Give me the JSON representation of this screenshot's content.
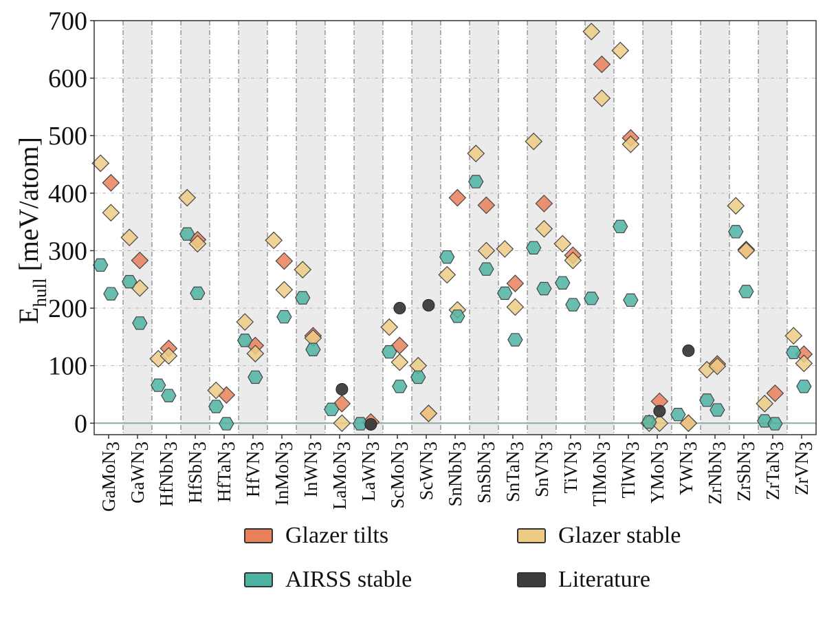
{
  "chart_data": {
    "type": "scatter",
    "ylabel_main": "E",
    "ylabel_sub": "hull",
    "ylabel_units": " [meV/atom]",
    "ylim": [
      -20,
      700
    ],
    "yticks": [
      0,
      100,
      200,
      300,
      400,
      500,
      600,
      700
    ],
    "grid": true,
    "reference_line": 0,
    "categories": [
      "GaMoN3",
      "GaWN3",
      "HfNbN3",
      "HfSbN3",
      "HfTaN3",
      "HfVN3",
      "InMoN3",
      "InWN3",
      "LaMoN3",
      "LaWN3",
      "ScMoN3",
      "ScWN3",
      "SnNbN3",
      "SnSbN3",
      "SnTaN3",
      "SnVN3",
      "TiVN3",
      "TlMoN3",
      "TlWN3",
      "YMoN3",
      "YWN3",
      "ZrNbN3",
      "ZrSbN3",
      "ZrTaN3",
      "ZrVN3"
    ],
    "category_labels": [
      {
        "base": "GaMoN",
        "sub": "3"
      },
      {
        "base": "GaWN",
        "sub": "3"
      },
      {
        "base": "HfNbN",
        "sub": "3"
      },
      {
        "base": "HfSbN",
        "sub": "3"
      },
      {
        "base": "HfTaN",
        "sub": "3"
      },
      {
        "base": "HfVN",
        "sub": "3"
      },
      {
        "base": "InMoN",
        "sub": "3"
      },
      {
        "base": "InWN",
        "sub": "3"
      },
      {
        "base": "LaMoN",
        "sub": "3"
      },
      {
        "base": "LaWN",
        "sub": "3"
      },
      {
        "base": "ScMoN",
        "sub": "3"
      },
      {
        "base": "ScWN",
        "sub": "3"
      },
      {
        "base": "SnNbN",
        "sub": "3"
      },
      {
        "base": "SnSbN",
        "sub": "3"
      },
      {
        "base": "SnTaN",
        "sub": "3"
      },
      {
        "base": "SnVN",
        "sub": "3"
      },
      {
        "base": "TiVN",
        "sub": "3"
      },
      {
        "base": "TlMoN",
        "sub": "3"
      },
      {
        "base": "TlWN",
        "sub": "3"
      },
      {
        "base": "YMoN",
        "sub": "3"
      },
      {
        "base": "YWN",
        "sub": "3"
      },
      {
        "base": "ZrNbN",
        "sub": "3"
      },
      {
        "base": "ZrSbN",
        "sub": "3"
      },
      {
        "base": "ZrTaN",
        "sub": "3"
      },
      {
        "base": "ZrVN",
        "sub": "3"
      }
    ],
    "series": [
      {
        "name": "Glazer tilts",
        "marker": "diamond",
        "color": "#E8805A",
        "points": [
          {
            "c": 0,
            "slot": 1,
            "y": 418
          },
          {
            "c": 1,
            "slot": 1,
            "y": 283
          },
          {
            "c": 2,
            "slot": 1,
            "y": 130
          },
          {
            "c": 3,
            "slot": 1,
            "y": 319
          },
          {
            "c": 4,
            "slot": 1,
            "y": 49
          },
          {
            "c": 5,
            "slot": 1,
            "y": 135
          },
          {
            "c": 6,
            "slot": 1,
            "y": 282
          },
          {
            "c": 7,
            "slot": 1,
            "y": 152
          },
          {
            "c": 8,
            "slot": 1,
            "y": 34
          },
          {
            "c": 9,
            "slot": 1,
            "y": 2
          },
          {
            "c": 10,
            "slot": 1,
            "y": 135
          },
          {
            "c": 11,
            "slot": 1,
            "y": 17
          },
          {
            "c": 12,
            "slot": 1,
            "y": 392
          },
          {
            "c": 13,
            "slot": 1,
            "y": 379
          },
          {
            "c": 14,
            "slot": 1,
            "y": 243
          },
          {
            "c": 15,
            "slot": 1,
            "y": 382
          },
          {
            "c": 16,
            "slot": 1,
            "y": 292
          },
          {
            "c": 17,
            "slot": 1,
            "y": 624
          },
          {
            "c": 18,
            "slot": 1,
            "y": 496
          },
          {
            "c": 19,
            "slot": 1,
            "y": 38
          },
          {
            "c": 20,
            "slot": 1,
            "y": 0
          },
          {
            "c": 21,
            "slot": 1,
            "y": 103
          },
          {
            "c": 22,
            "slot": 1,
            "y": 302
          },
          {
            "c": 23,
            "slot": 1,
            "y": 52
          },
          {
            "c": 24,
            "slot": 1,
            "y": 120
          }
        ]
      },
      {
        "name": "Glazer stable",
        "marker": "diamond",
        "color": "#EDCB85",
        "points": [
          {
            "c": 0,
            "slot": 0,
            "y": 452
          },
          {
            "c": 0,
            "slot": 1,
            "y": 366
          },
          {
            "c": 1,
            "slot": 0,
            "y": 323
          },
          {
            "c": 1,
            "slot": 1,
            "y": 235
          },
          {
            "c": 2,
            "slot": 0,
            "y": 112
          },
          {
            "c": 2,
            "slot": 1,
            "y": 117
          },
          {
            "c": 3,
            "slot": 0,
            "y": 392
          },
          {
            "c": 3,
            "slot": 1,
            "y": 312
          },
          {
            "c": 4,
            "slot": 0,
            "y": 57
          },
          {
            "c": 5,
            "slot": 0,
            "y": 176
          },
          {
            "c": 5,
            "slot": 1,
            "y": 121
          },
          {
            "c": 6,
            "slot": 0,
            "y": 318
          },
          {
            "c": 6,
            "slot": 1,
            "y": 232
          },
          {
            "c": 7,
            "slot": 0,
            "y": 267
          },
          {
            "c": 7,
            "slot": 1,
            "y": 148
          },
          {
            "c": 8,
            "slot": 1,
            "y": 0
          },
          {
            "c": 10,
            "slot": 0,
            "y": 167
          },
          {
            "c": 10,
            "slot": 1,
            "y": 106
          },
          {
            "c": 11,
            "slot": 0,
            "y": 100
          },
          {
            "c": 11,
            "slot": 1,
            "y": 17
          },
          {
            "c": 12,
            "slot": 0,
            "y": 258
          },
          {
            "c": 12,
            "slot": 1,
            "y": 197
          },
          {
            "c": 13,
            "slot": 0,
            "y": 469
          },
          {
            "c": 13,
            "slot": 1,
            "y": 300
          },
          {
            "c": 14,
            "slot": 0,
            "y": 303
          },
          {
            "c": 14,
            "slot": 1,
            "y": 202
          },
          {
            "c": 15,
            "slot": 0,
            "y": 490
          },
          {
            "c": 15,
            "slot": 1,
            "y": 338
          },
          {
            "c": 16,
            "slot": 0,
            "y": 312
          },
          {
            "c": 16,
            "slot": 1,
            "y": 283
          },
          {
            "c": 17,
            "slot": 0,
            "y": 681
          },
          {
            "c": 17,
            "slot": 1,
            "y": 565
          },
          {
            "c": 18,
            "slot": 0,
            "y": 648
          },
          {
            "c": 18,
            "slot": 1,
            "y": 485
          },
          {
            "c": 19,
            "slot": 0,
            "y": 0
          },
          {
            "c": 19,
            "slot": 1,
            "y": 0
          },
          {
            "c": 20,
            "slot": 1,
            "y": 0
          },
          {
            "c": 21,
            "slot": 0,
            "y": 93
          },
          {
            "c": 21,
            "slot": 1,
            "y": 99
          },
          {
            "c": 22,
            "slot": 0,
            "y": 378
          },
          {
            "c": 22,
            "slot": 1,
            "y": 300
          },
          {
            "c": 23,
            "slot": 0,
            "y": 34
          },
          {
            "c": 24,
            "slot": 0,
            "y": 152
          },
          {
            "c": 24,
            "slot": 1,
            "y": 104
          }
        ]
      },
      {
        "name": "AIRSS stable",
        "marker": "hexagon",
        "color": "#4FB3A4",
        "points": [
          {
            "c": 0,
            "slot": 0,
            "y": 275
          },
          {
            "c": 0,
            "slot": 1,
            "y": 225
          },
          {
            "c": 1,
            "slot": 0,
            "y": 246
          },
          {
            "c": 1,
            "slot": 1,
            "y": 174
          },
          {
            "c": 2,
            "slot": 0,
            "y": 66
          },
          {
            "c": 2,
            "slot": 1,
            "y": 48
          },
          {
            "c": 3,
            "slot": 0,
            "y": 329
          },
          {
            "c": 3,
            "slot": 1,
            "y": 226
          },
          {
            "c": 4,
            "slot": 0,
            "y": 29
          },
          {
            "c": 4,
            "slot": 1,
            "y": -1
          },
          {
            "c": 5,
            "slot": 0,
            "y": 144
          },
          {
            "c": 5,
            "slot": 1,
            "y": 80
          },
          {
            "c": 6,
            "slot": 1,
            "y": 185
          },
          {
            "c": 7,
            "slot": 0,
            "y": 218
          },
          {
            "c": 7,
            "slot": 1,
            "y": 128
          },
          {
            "c": 8,
            "slot": 0,
            "y": 24
          },
          {
            "c": 9,
            "slot": 0,
            "y": -1
          },
          {
            "c": 10,
            "slot": 0,
            "y": 124
          },
          {
            "c": 10,
            "slot": 1,
            "y": 64
          },
          {
            "c": 11,
            "slot": 0,
            "y": 80
          },
          {
            "c": 12,
            "slot": 0,
            "y": 289
          },
          {
            "c": 12,
            "slot": 1,
            "y": 186
          },
          {
            "c": 13,
            "slot": 0,
            "y": 420
          },
          {
            "c": 13,
            "slot": 1,
            "y": 268
          },
          {
            "c": 14,
            "slot": 0,
            "y": 226
          },
          {
            "c": 14,
            "slot": 1,
            "y": 145
          },
          {
            "c": 15,
            "slot": 0,
            "y": 305
          },
          {
            "c": 15,
            "slot": 1,
            "y": 234
          },
          {
            "c": 16,
            "slot": 0,
            "y": 244
          },
          {
            "c": 16,
            "slot": 1,
            "y": 206
          },
          {
            "c": 17,
            "slot": 0,
            "y": 217
          },
          {
            "c": 18,
            "slot": 0,
            "y": 342
          },
          {
            "c": 18,
            "slot": 1,
            "y": 214
          },
          {
            "c": 19,
            "slot": 0,
            "y": 2
          },
          {
            "c": 20,
            "slot": 0,
            "y": 15
          },
          {
            "c": 21,
            "slot": 0,
            "y": 40
          },
          {
            "c": 21,
            "slot": 1,
            "y": 23
          },
          {
            "c": 22,
            "slot": 0,
            "y": 333
          },
          {
            "c": 22,
            "slot": 1,
            "y": 229
          },
          {
            "c": 23,
            "slot": 0,
            "y": 4
          },
          {
            "c": 23,
            "slot": 1,
            "y": -1
          },
          {
            "c": 24,
            "slot": 0,
            "y": 123
          },
          {
            "c": 24,
            "slot": 1,
            "y": 64
          }
        ]
      },
      {
        "name": "Literature",
        "marker": "circle",
        "color": "#3C3C3C",
        "points": [
          {
            "c": 8,
            "slot": 1,
            "y": 59
          },
          {
            "c": 9,
            "slot": 1,
            "y": -2
          },
          {
            "c": 10,
            "slot": 1,
            "y": 200
          },
          {
            "c": 11,
            "slot": 1,
            "y": 205
          },
          {
            "c": 19,
            "slot": 1,
            "y": 21
          },
          {
            "c": 20,
            "slot": 1,
            "y": 126
          }
        ]
      }
    ],
    "legend": [
      {
        "label": "Glazer tilts",
        "color": "#E8805A"
      },
      {
        "label": "Glazer stable",
        "color": "#EDCB85"
      },
      {
        "label": "AIRSS stable",
        "color": "#4FB3A4"
      },
      {
        "label": "Literature",
        "color": "#3C3C3C"
      }
    ],
    "colors": {
      "band": "#EBEBEB",
      "grid": "#B5B5B5",
      "zero_line": "#8FA8A3",
      "frame": "#333333"
    }
  }
}
